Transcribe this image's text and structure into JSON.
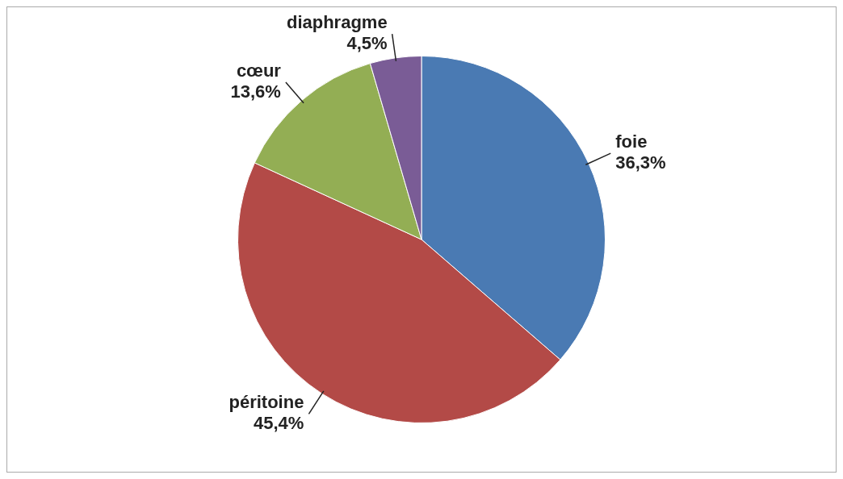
{
  "chart_data": {
    "type": "pie",
    "categories": [
      "foie",
      "péritoine",
      "cœur",
      "diaphragme"
    ],
    "values": [
      36.3,
      45.4,
      13.6,
      4.5
    ],
    "value_labels": [
      "36,3%",
      "45,4%",
      "13,6%",
      "4,5%"
    ],
    "colors": [
      "#4a7ab3",
      "#b34a47",
      "#93ae54",
      "#7a5c96"
    ],
    "legend": false
  }
}
